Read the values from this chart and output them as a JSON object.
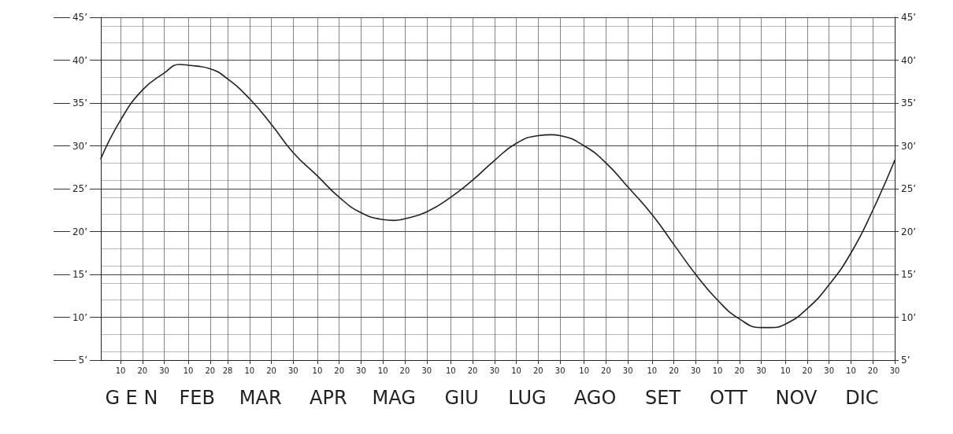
{
  "chart_data": {
    "type": "line",
    "color": "#222222",
    "x": [
      "--01-01",
      "--01-10",
      "--01-20",
      "--01-30",
      "--02-06",
      "--02-10",
      "--02-20",
      "--02-28",
      "--03-10",
      "--03-20",
      "--03-30",
      "--04-10",
      "--04-20",
      "--04-30",
      "--05-10",
      "--05-15",
      "--05-20",
      "--05-30",
      "--06-10",
      "--06-20",
      "--06-30",
      "--07-10",
      "--07-20",
      "--07-26",
      "--07-30",
      "--08-10",
      "--08-20",
      "--08-30",
      "--09-10",
      "--09-20",
      "--09-30",
      "--10-10",
      "--10-20",
      "--10-30",
      "--11-03",
      "--11-10",
      "--11-20",
      "--11-30",
      "--12-10",
      "--12-20",
      "--12-30"
    ],
    "values": [
      28.5,
      33,
      36.5,
      38.5,
      39.5,
      39.4,
      39,
      37.8,
      35.5,
      32.5,
      29.2,
      26.5,
      24,
      22.2,
      21.4,
      21.3,
      21.5,
      22.3,
      24,
      26,
      28.3,
      30.3,
      31.2,
      31.3,
      31.2,
      30,
      28,
      25.2,
      22,
      18.5,
      15,
      12,
      9.8,
      8.8,
      8.8,
      9.2,
      11,
      13.8,
      17.5,
      22.5,
      28.3
    ],
    "xlim": [
      "--01-01",
      "--12-30"
    ],
    "xticks": [
      {
        "value": "--01-10",
        "label": "10"
      },
      {
        "value": "--01-20",
        "label": "20"
      },
      {
        "value": "--01-30",
        "label": "30"
      },
      {
        "value": "--02-10",
        "label": "10"
      },
      {
        "value": "--02-20",
        "label": "20"
      },
      {
        "value": "--02-28",
        "label": "28"
      },
      {
        "value": "--03-10",
        "label": "10"
      },
      {
        "value": "--03-20",
        "label": "20"
      },
      {
        "value": "--03-30",
        "label": "30"
      },
      {
        "value": "--04-10",
        "label": "10"
      },
      {
        "value": "--04-20",
        "label": "20"
      },
      {
        "value": "--04-30",
        "label": "30"
      },
      {
        "value": "--05-10",
        "label": "10"
      },
      {
        "value": "--05-20",
        "label": "20"
      },
      {
        "value": "--05-30",
        "label": "30"
      },
      {
        "value": "--06-10",
        "label": "10"
      },
      {
        "value": "--06-20",
        "label": "20"
      },
      {
        "value": "--06-30",
        "label": "30"
      },
      {
        "value": "--07-10",
        "label": "10"
      },
      {
        "value": "--07-20",
        "label": "20"
      },
      {
        "value": "--07-30",
        "label": "30"
      },
      {
        "value": "--08-10",
        "label": "10"
      },
      {
        "value": "--08-20",
        "label": "20"
      },
      {
        "value": "--08-30",
        "label": "30"
      },
      {
        "value": "--09-10",
        "label": "10"
      },
      {
        "value": "--09-20",
        "label": "20"
      },
      {
        "value": "--09-30",
        "label": "30"
      },
      {
        "value": "--10-10",
        "label": "10"
      },
      {
        "value": "--10-20",
        "label": "20"
      },
      {
        "value": "--10-30",
        "label": "30"
      },
      {
        "value": "--11-10",
        "label": "10"
      },
      {
        "value": "--11-20",
        "label": "20"
      },
      {
        "value": "--11-30",
        "label": "30"
      },
      {
        "value": "--12-10",
        "label": "10"
      },
      {
        "value": "--12-20",
        "label": "20"
      },
      {
        "value": "--12-30",
        "label": "30"
      }
    ],
    "x2lim": [
      "--01-01",
      "--12-30"
    ],
    "x2ticks": [
      {
        "value": "--01-15",
        "label": "G E N"
      },
      {
        "value": "--02-14",
        "label": "FEB"
      },
      {
        "value": "--03-15",
        "label": "MAR"
      },
      {
        "value": "--04-15",
        "label": "APR"
      },
      {
        "value": "--05-15",
        "label": "MAG"
      },
      {
        "value": "--06-15",
        "label": "GIU"
      },
      {
        "value": "--07-15",
        "label": "LUG"
      },
      {
        "value": "--08-15",
        "label": "AGO"
      },
      {
        "value": "--09-15",
        "label": "SET"
      },
      {
        "value": "--10-15",
        "label": "OTT"
      },
      {
        "value": "--11-15",
        "label": "NOV"
      },
      {
        "value": "--12-15",
        "label": "DIC"
      }
    ],
    "ylim": [
      5,
      45
    ],
    "yticks": [
      {
        "value": 5,
        "label": "5’"
      },
      {
        "value": 10,
        "label": "10’"
      },
      {
        "value": 15,
        "label": "15’"
      },
      {
        "value": 20,
        "label": "20’"
      },
      {
        "value": 25,
        "label": "25’"
      },
      {
        "value": 30,
        "label": "30’"
      },
      {
        "value": 35,
        "label": "35’"
      },
      {
        "value": 40,
        "label": "40’"
      },
      {
        "value": 45,
        "label": "45’"
      }
    ],
    "y2lim": [
      5,
      45
    ],
    "y2ticks": [
      {
        "value": 5,
        "label": "5’"
      },
      {
        "value": 10,
        "label": "10’"
      },
      {
        "value": 15,
        "label": "15’"
      },
      {
        "value": 20,
        "label": "20’"
      },
      {
        "value": 25,
        "label": "25’"
      },
      {
        "value": 30,
        "label": "30’"
      },
      {
        "value": 35,
        "label": "35’"
      },
      {
        "value": 40,
        "label": "40’"
      },
      {
        "value": 45,
        "label": "45’"
      }
    ],
    "grid": true,
    "marker": "none",
    "line_style": "solid"
  }
}
